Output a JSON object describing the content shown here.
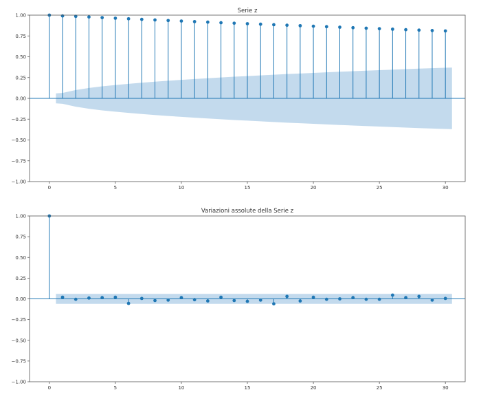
{
  "chart_data": [
    {
      "type": "stem",
      "title": "Serie z",
      "xlabel": "",
      "ylabel": "",
      "xlim": [
        -1.5,
        31.5
      ],
      "ylim": [
        -1.0,
        1.0
      ],
      "xticks": [
        0,
        5,
        10,
        15,
        20,
        25,
        30
      ],
      "xtick_labels": [
        "0",
        "5",
        "10",
        "15",
        "20",
        "25",
        "30"
      ],
      "yticks": [
        1.0,
        0.75,
        0.5,
        0.25,
        0.0,
        -0.25,
        -0.5,
        -0.75,
        -1.0
      ],
      "ytick_labels": [
        "1.00",
        "0.75",
        "0.50",
        "0.25",
        "0.00",
        "−0.25",
        "−0.50",
        "−0.75",
        "−1.00"
      ],
      "grid": false,
      "lags": [
        0,
        1,
        2,
        3,
        4,
        5,
        6,
        7,
        8,
        9,
        10,
        11,
        12,
        13,
        14,
        15,
        16,
        17,
        18,
        19,
        20,
        21,
        22,
        23,
        24,
        25,
        26,
        27,
        28,
        29,
        30
      ],
      "values": [
        1.0,
        0.99,
        0.985,
        0.978,
        0.97,
        0.963,
        0.956,
        0.949,
        0.942,
        0.935,
        0.929,
        0.922,
        0.916,
        0.909,
        0.903,
        0.897,
        0.891,
        0.885,
        0.879,
        0.873,
        0.867,
        0.861,
        0.855,
        0.849,
        0.843,
        0.837,
        0.831,
        0.825,
        0.82,
        0.815,
        0.81
      ],
      "confidence_band": {
        "x": [
          0.5,
          1,
          2,
          3,
          4,
          5,
          6,
          7,
          8,
          9,
          10,
          11,
          12,
          13,
          14,
          15,
          16,
          17,
          18,
          19,
          20,
          21,
          22,
          23,
          24,
          25,
          26,
          27,
          28,
          29,
          30,
          30.5
        ],
        "upper": [
          0.06,
          0.065,
          0.1,
          0.125,
          0.145,
          0.16,
          0.175,
          0.188,
          0.2,
          0.212,
          0.222,
          0.232,
          0.242,
          0.251,
          0.26,
          0.268,
          0.276,
          0.284,
          0.292,
          0.299,
          0.306,
          0.313,
          0.32,
          0.326,
          0.333,
          0.339,
          0.345,
          0.351,
          0.357,
          0.363,
          0.368,
          0.37
        ],
        "lower": [
          -0.06,
          -0.065,
          -0.1,
          -0.125,
          -0.145,
          -0.16,
          -0.175,
          -0.188,
          -0.2,
          -0.212,
          -0.222,
          -0.232,
          -0.242,
          -0.251,
          -0.26,
          -0.268,
          -0.276,
          -0.284,
          -0.292,
          -0.299,
          -0.306,
          -0.313,
          -0.32,
          -0.326,
          -0.333,
          -0.339,
          -0.345,
          -0.351,
          -0.357,
          -0.363,
          -0.368,
          -0.37
        ]
      },
      "colors": {
        "stem": "#1f77b4",
        "band": "#aacbe6",
        "zero_line": "#1f77b4"
      }
    },
    {
      "type": "stem",
      "title": "Variazioni assolute della Serie z",
      "xlabel": "",
      "ylabel": "",
      "xlim": [
        -1.5,
        31.5
      ],
      "ylim": [
        -1.0,
        1.0
      ],
      "xticks": [
        0,
        5,
        10,
        15,
        20,
        25,
        30
      ],
      "xtick_labels": [
        "0",
        "5",
        "10",
        "15",
        "20",
        "25",
        "30"
      ],
      "yticks": [
        1.0,
        0.75,
        0.5,
        0.25,
        0.0,
        -0.25,
        -0.5,
        -0.75,
        -1.0
      ],
      "ytick_labels": [
        "1.00",
        "0.75",
        "0.50",
        "0.25",
        "0.00",
        "−0.25",
        "−0.50",
        "−0.75",
        "−1.00"
      ],
      "grid": false,
      "lags": [
        0,
        1,
        2,
        3,
        4,
        5,
        6,
        7,
        8,
        9,
        10,
        11,
        12,
        13,
        14,
        15,
        16,
        17,
        18,
        19,
        20,
        21,
        22,
        23,
        24,
        25,
        26,
        27,
        28,
        29,
        30
      ],
      "values": [
        1.0,
        0.02,
        -0.005,
        0.01,
        0.015,
        0.02,
        -0.055,
        0.005,
        -0.02,
        -0.015,
        0.015,
        -0.01,
        -0.025,
        0.02,
        -0.02,
        -0.03,
        -0.015,
        -0.06,
        0.03,
        -0.025,
        0.02,
        -0.005,
        0.0,
        0.015,
        -0.005,
        -0.005,
        0.045,
        0.015,
        0.03,
        -0.015,
        0.005
      ],
      "confidence_band": {
        "x": [
          0.5,
          30.5
        ],
        "upper": [
          0.06,
          0.06
        ],
        "lower": [
          -0.06,
          -0.06
        ]
      },
      "colors": {
        "stem": "#1f77b4",
        "band": "#aacbe6",
        "zero_line": "#1f77b4"
      }
    }
  ]
}
